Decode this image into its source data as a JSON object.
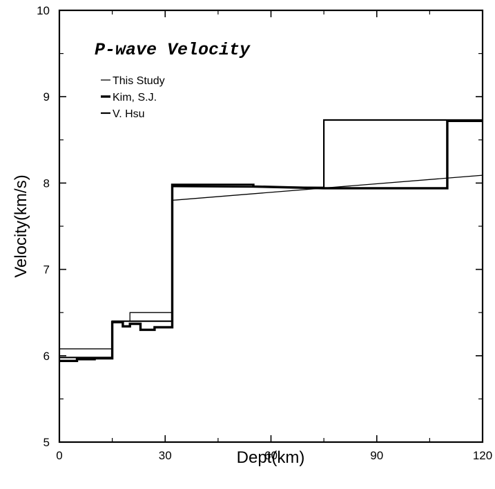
{
  "chart_data": {
    "type": "line",
    "title": "P-wave Velocity",
    "xlabel": "Dept(km)",
    "ylabel": "Velocity(km/s)",
    "xlim": [
      0,
      120
    ],
    "ylim": [
      5,
      10
    ],
    "x_ticks": [
      0,
      30,
      60,
      90,
      120
    ],
    "y_ticks": [
      5,
      6,
      7,
      8,
      9,
      10
    ],
    "x_tick_labels": [
      "0",
      "30",
      "60",
      "90",
      "120"
    ],
    "y_tick_labels": [
      "5",
      "6",
      "7",
      "8",
      "9",
      "10"
    ],
    "grid": false,
    "legend_position": "top-left",
    "series": [
      {
        "name": "This Study",
        "style": "thin",
        "points": [
          [
            0,
            6.08
          ],
          [
            15,
            6.08
          ],
          [
            15,
            6.4
          ],
          [
            20,
            6.4
          ],
          [
            20,
            6.5
          ],
          [
            32,
            6.5
          ],
          [
            32,
            7.8
          ],
          [
            120,
            8.09
          ]
        ]
      },
      {
        "name": "Kim, S.J.",
        "style": "thick",
        "points": [
          [
            0,
            5.94
          ],
          [
            5,
            5.94
          ],
          [
            5,
            5.96
          ],
          [
            10,
            5.96
          ],
          [
            10,
            5.97
          ],
          [
            15,
            5.97
          ],
          [
            15,
            6.39
          ],
          [
            18,
            6.39
          ],
          [
            18,
            6.34
          ],
          [
            20,
            6.34
          ],
          [
            20,
            6.37
          ],
          [
            23,
            6.37
          ],
          [
            23,
            6.3
          ],
          [
            27,
            6.3
          ],
          [
            27,
            6.33
          ],
          [
            32,
            6.33
          ],
          [
            32,
            7.98
          ],
          [
            55,
            7.98
          ],
          [
            55,
            7.96
          ],
          [
            75,
            7.94
          ],
          [
            110,
            7.94
          ],
          [
            110,
            8.72
          ],
          [
            120,
            8.72
          ]
        ]
      },
      {
        "name": "V. Hsu",
        "style": "medium",
        "points": [
          [
            0,
            5.98
          ],
          [
            15,
            5.98
          ],
          [
            15,
            6.4
          ],
          [
            32,
            6.4
          ],
          [
            32,
            7.96
          ],
          [
            75,
            7.95
          ],
          [
            75,
            8.73
          ],
          [
            120,
            8.73
          ]
        ]
      }
    ]
  }
}
